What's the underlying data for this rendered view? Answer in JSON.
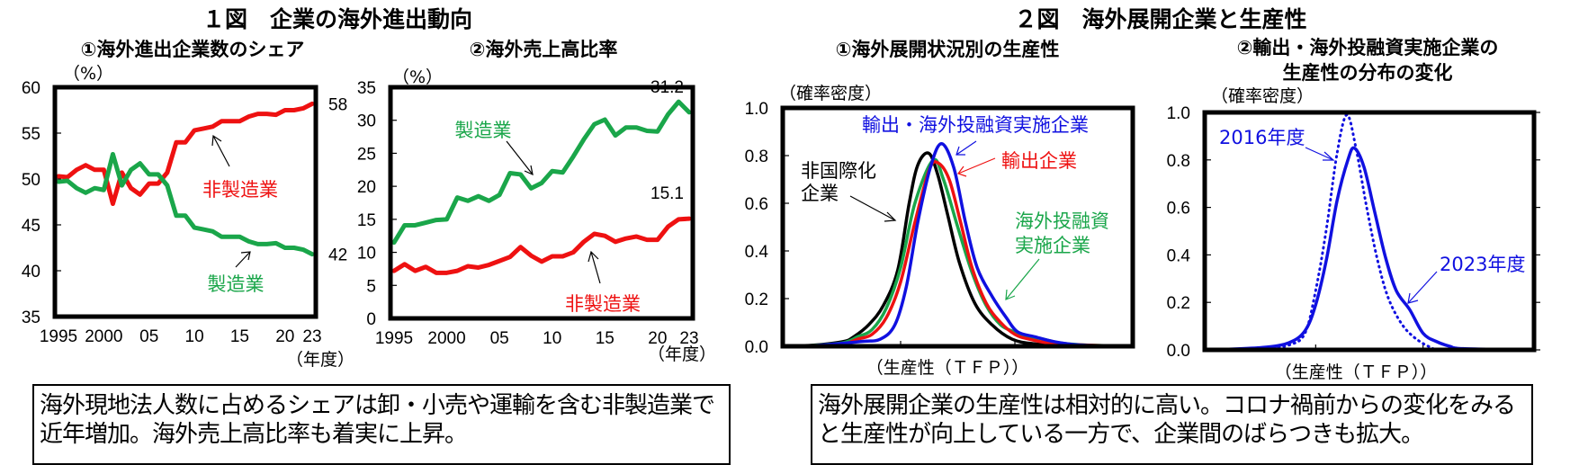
{
  "fig1": {
    "title": "１図　企業の海外進出動向",
    "year_unit": "（年度）"
  },
  "fig2": {
    "title": "２図　海外展開企業と生産性"
  },
  "colors": {
    "manufacturing": "#1aa64a",
    "non_manufacturing": "#ee1111",
    "blue": "#1010e0",
    "black": "#000000"
  },
  "chart_data": [
    {
      "id": "c1",
      "type": "line",
      "title": "①海外進出企業数のシェア",
      "ylabel": "（%）",
      "xlabel": "（年度）",
      "ylim": [
        35,
        60
      ],
      "yticks": [
        "35",
        "40",
        "45",
        "50",
        "55",
        "60"
      ],
      "xticks": [
        {
          "x": 1995,
          "label": "1995"
        },
        {
          "x": 2000,
          "label": "2000"
        },
        {
          "x": 2005,
          "label": "05"
        },
        {
          "x": 2010,
          "label": "10"
        },
        {
          "x": 2015,
          "label": "15"
        },
        {
          "x": 2020,
          "label": "20"
        },
        {
          "x": 2023,
          "label": "23"
        }
      ],
      "x": [
        1995,
        1996,
        1997,
        1998,
        1999,
        2000,
        2001,
        2002,
        2003,
        2004,
        2005,
        2006,
        2007,
        2008,
        2009,
        2010,
        2011,
        2012,
        2013,
        2014,
        2015,
        2016,
        2017,
        2018,
        2019,
        2020,
        2021,
        2022,
        2023
      ],
      "series": [
        {
          "name": "非製造業",
          "color": "#ee1111",
          "values": [
            50.3,
            50.2,
            51.0,
            51.5,
            51.0,
            51.0,
            47.3,
            50.7,
            49.0,
            48.3,
            49.5,
            49.5,
            50.7,
            54.0,
            54.0,
            55.3,
            55.5,
            55.7,
            56.3,
            56.3,
            56.3,
            56.8,
            57.1,
            57.1,
            57.0,
            57.5,
            57.5,
            57.7,
            58.2
          ]
        },
        {
          "name": "製造業",
          "color": "#1aa64a",
          "values": [
            49.7,
            49.8,
            49.0,
            48.5,
            49.0,
            48.8,
            52.7,
            49.3,
            51.0,
            51.7,
            50.5,
            50.5,
            49.3,
            46.0,
            46.0,
            44.7,
            44.5,
            44.3,
            43.7,
            43.7,
            43.7,
            43.2,
            42.9,
            42.9,
            43.0,
            42.5,
            42.5,
            42.3,
            41.8
          ]
        }
      ],
      "end_labels": [
        "58",
        "42"
      ]
    },
    {
      "id": "c2",
      "type": "line",
      "title": "②海外売上高比率",
      "ylabel": "（%）",
      "xlabel": "（年度）",
      "ylim": [
        0,
        35
      ],
      "yticks": [
        "0",
        "5",
        "10",
        "15",
        "20",
        "25",
        "30",
        "35"
      ],
      "xticks": [
        {
          "x": 1995,
          "label": "1995"
        },
        {
          "x": 2000,
          "label": "2000"
        },
        {
          "x": 2005,
          "label": "05"
        },
        {
          "x": 2010,
          "label": "10"
        },
        {
          "x": 2015,
          "label": "15"
        },
        {
          "x": 2020,
          "label": "20"
        },
        {
          "x": 2023,
          "label": "23"
        }
      ],
      "x": [
        1995,
        1996,
        1997,
        1998,
        1999,
        2000,
        2001,
        2002,
        2003,
        2004,
        2005,
        2006,
        2007,
        2008,
        2009,
        2010,
        2011,
        2012,
        2013,
        2014,
        2015,
        2016,
        2017,
        2018,
        2019,
        2020,
        2021,
        2022,
        2023
      ],
      "series": [
        {
          "name": "製造業",
          "color": "#1aa64a",
          "values": [
            11.5,
            14.1,
            14.1,
            14.5,
            14.9,
            15.0,
            18.3,
            17.8,
            18.5,
            17.8,
            18.7,
            22.0,
            21.8,
            19.7,
            20.5,
            22.3,
            22.1,
            24.5,
            27.1,
            29.4,
            30.1,
            27.7,
            28.9,
            28.9,
            28.4,
            28.3,
            30.9,
            32.8,
            31.2
          ]
        },
        {
          "name": "非製造業",
          "color": "#ee1111",
          "values": [
            7.2,
            8.2,
            7.2,
            7.8,
            6.9,
            6.9,
            7.2,
            7.9,
            7.7,
            8.1,
            8.7,
            9.3,
            10.8,
            9.5,
            8.6,
            9.4,
            9.4,
            10.0,
            11.6,
            12.8,
            12.5,
            11.6,
            12.1,
            12.4,
            11.9,
            11.9,
            13.9,
            15.0,
            15.1
          ]
        }
      ],
      "end_labels": [
        "31.2",
        "15.1"
      ]
    },
    {
      "id": "c3",
      "type": "line",
      "title": "①海外展開状況別の生産性",
      "ylabel": "（確率密度）",
      "xlabel": "（生産性（ＴＦＰ））",
      "ylim": [
        0,
        1.0
      ],
      "xlim": [
        0,
        12
      ],
      "yticks": [
        "0.0",
        "0.2",
        "0.4",
        "0.6",
        "0.8",
        "1.0"
      ],
      "series": [
        {
          "name": "非国際化企業",
          "color": "#000000",
          "points": [
            [
              0,
              0
            ],
            [
              1,
              0.005
            ],
            [
              2,
              0.02
            ],
            [
              2.36,
              0.04
            ],
            [
              2.88,
              0.09
            ],
            [
              3.39,
              0.17
            ],
            [
              3.9,
              0.32
            ],
            [
              4.3,
              0.6
            ],
            [
              4.6,
              0.76
            ],
            [
              4.98,
              0.81
            ],
            [
              5.3,
              0.72
            ],
            [
              5.65,
              0.55
            ],
            [
              6.06,
              0.35
            ],
            [
              6.6,
              0.18
            ],
            [
              7.2,
              0.09
            ],
            [
              7.9,
              0.03
            ],
            [
              8.7,
              0.01
            ],
            [
              10,
              0.002
            ],
            [
              12,
              0
            ]
          ]
        },
        {
          "name": "海外投融資実施企業",
          "color": "#1aa64a",
          "points": [
            [
              0,
              0
            ],
            [
              1,
              0.004
            ],
            [
              2,
              0.015
            ],
            [
              2.5,
              0.04
            ],
            [
              3.0,
              0.07
            ],
            [
              3.5,
              0.16
            ],
            [
              4.0,
              0.33
            ],
            [
              4.5,
              0.6
            ],
            [
              5.13,
              0.78
            ],
            [
              5.5,
              0.7
            ],
            [
              6.0,
              0.5
            ],
            [
              6.5,
              0.31
            ],
            [
              7.0,
              0.17
            ],
            [
              7.5,
              0.09
            ],
            [
              8.0,
              0.06
            ],
            [
              8.5,
              0.04
            ],
            [
              9.0,
              0.03
            ],
            [
              9.5,
              0.015
            ],
            [
              10.5,
              0.005
            ],
            [
              12,
              0
            ]
          ]
        },
        {
          "name": "輸出企業",
          "color": "#ee1111",
          "points": [
            [
              0,
              0
            ],
            [
              1,
              0.003
            ],
            [
              2,
              0.01
            ],
            [
              2.5,
              0.03
            ],
            [
              3.0,
              0.05
            ],
            [
              3.5,
              0.12
            ],
            [
              4.0,
              0.27
            ],
            [
              4.5,
              0.52
            ],
            [
              5.0,
              0.74
            ],
            [
              5.3,
              0.77
            ],
            [
              5.7,
              0.7
            ],
            [
              6.1,
              0.52
            ],
            [
              6.5,
              0.33
            ],
            [
              7.0,
              0.18
            ],
            [
              7.5,
              0.1
            ],
            [
              8.0,
              0.05
            ],
            [
              8.5,
              0.03
            ],
            [
              9.5,
              0.01
            ],
            [
              12,
              0
            ]
          ]
        },
        {
          "name": "輸出・海外投融資実施企業",
          "color": "#1010e0",
          "points": [
            [
              0,
              0
            ],
            [
              1,
              0.003
            ],
            [
              2.6,
              0.02
            ],
            [
              3.29,
              0.03
            ],
            [
              3.8,
              0.09
            ],
            [
              4.2,
              0.25
            ],
            [
              4.6,
              0.52
            ],
            [
              5.04,
              0.75
            ],
            [
              5.43,
              0.85
            ],
            [
              5.86,
              0.75
            ],
            [
              6.27,
              0.52
            ],
            [
              6.68,
              0.33
            ],
            [
              7.2,
              0.21
            ],
            [
              7.7,
              0.12
            ],
            [
              8.1,
              0.06
            ],
            [
              8.7,
              0.04
            ],
            [
              9.35,
              0.02
            ],
            [
              10.3,
              0.005
            ],
            [
              12,
              0
            ]
          ]
        }
      ]
    },
    {
      "id": "c4",
      "type": "line",
      "title_line1": "②輸出・海外投融資実施企業の",
      "title_line2": "生産性の分布の変化",
      "ylabel": "（確率密度）",
      "xlabel": "（生産性（ＴＦＰ））",
      "ylim": [
        0,
        1.0
      ],
      "xlim": [
        0,
        12
      ],
      "yticks": [
        "0.0",
        "0.2",
        "0.4",
        "0.6",
        "0.8",
        "1.0"
      ],
      "series": [
        {
          "name": "2016年度",
          "color": "#1010e0",
          "style": "dotted",
          "points": [
            [
              0,
              0
            ],
            [
              2,
              0.005
            ],
            [
              3,
              0.02
            ],
            [
              3.6,
              0.07
            ],
            [
              4.0,
              0.25
            ],
            [
              4.4,
              0.51
            ],
            [
              4.8,
              0.83
            ],
            [
              5.16,
              0.99
            ],
            [
              5.5,
              0.85
            ],
            [
              5.9,
              0.6
            ],
            [
              6.3,
              0.38
            ],
            [
              6.7,
              0.22
            ],
            [
              7.2,
              0.11
            ],
            [
              7.7,
              0.05
            ],
            [
              8.3,
              0.01
            ],
            [
              8.8,
              0
            ],
            [
              12,
              0
            ]
          ]
        },
        {
          "name": "2023年度",
          "color": "#1010e0",
          "style": "solid",
          "points": [
            [
              0,
              0
            ],
            [
              2,
              0.01
            ],
            [
              3.0,
              0.03
            ],
            [
              3.6,
              0.08
            ],
            [
              4.0,
              0.19
            ],
            [
              4.4,
              0.38
            ],
            [
              4.8,
              0.63
            ],
            [
              5.2,
              0.8
            ],
            [
              5.44,
              0.85
            ],
            [
              5.8,
              0.77
            ],
            [
              6.2,
              0.58
            ],
            [
              6.6,
              0.39
            ],
            [
              7.0,
              0.25
            ],
            [
              7.5,
              0.17
            ],
            [
              8.0,
              0.07
            ],
            [
              8.5,
              0.035
            ],
            [
              9.0,
              0.015
            ],
            [
              9.5,
              0.005
            ],
            [
              12,
              0
            ]
          ]
        }
      ]
    }
  ],
  "annotations": {
    "c1_non_mfg": "非製造業",
    "c1_mfg": "製造業",
    "c2_mfg": "製造業",
    "c2_non_mfg": "非製造業",
    "c3_both": "輸出・海外投融資実施企業",
    "c3_export": "輸出企業",
    "c3_nonintl_1": "非国際化",
    "c3_nonintl_2": "企業",
    "c3_invest_1": "海外投融資",
    "c3_invest_2": "実施企業",
    "c4_2016": "2016年度",
    "c4_2023": "2023年度"
  },
  "summaries": {
    "left": "海外現地法人数に占めるシェアは卸・小売や運輸を含む非製造業で近年増加。海外売上高比率も着実に上昇。",
    "right": "海外展開企業の生産性は相対的に高い。コロナ禍前からの変化をみると生産性が向上している一方で、企業間のばらつきも拡大。"
  }
}
